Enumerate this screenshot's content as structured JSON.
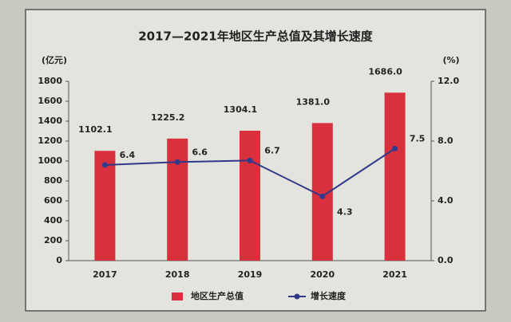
{
  "chart_data": {
    "type": "bar",
    "title": "2017—2021年地区生产总值及其增长速度",
    "ylabel": "(亿元)",
    "y2label": "(%)",
    "categories": [
      "2017",
      "2018",
      "2019",
      "2020",
      "2021"
    ],
    "series": [
      {
        "name": "地区生产总值",
        "type": "bar",
        "color": "#d8303c",
        "values": [
          1102.1,
          1225.2,
          1304.1,
          1381.0,
          1686.0
        ],
        "value_labels": [
          "1102.1",
          "1225.2",
          "1304.1",
          "1381.0",
          "1686.0"
        ]
      },
      {
        "name": "增长速度",
        "type": "line",
        "axis": "y2",
        "color": "#2f3a8a",
        "values": [
          6.4,
          6.6,
          6.7,
          4.3,
          7.5
        ]
      }
    ],
    "ylim": [
      0,
      1800
    ],
    "yticks": [
      0,
      200,
      400,
      600,
      800,
      1000,
      1200,
      1400,
      1600,
      1800
    ],
    "y2lim": [
      0,
      12
    ],
    "y2ticks": [
      {
        "value": 0,
        "label": "0.0"
      },
      {
        "value": 4,
        "label": "4.0"
      },
      {
        "value": 8,
        "label": "8.0"
      },
      {
        "value": 12,
        "label": "12.0"
      }
    ],
    "legend": "bottom"
  }
}
